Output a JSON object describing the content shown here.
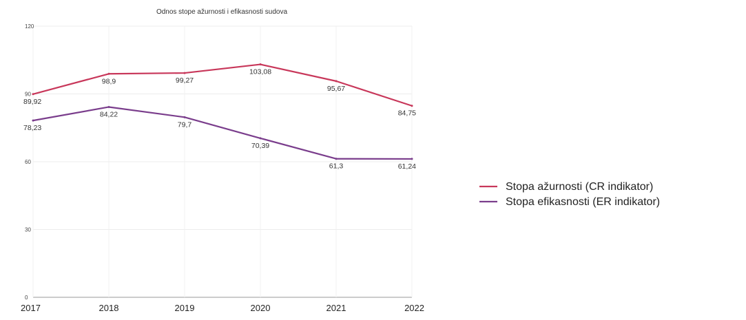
{
  "chart_data": {
    "type": "line",
    "title": "Odnos stope ažurnosti i efikasnosti sudova",
    "xlabel": "",
    "ylabel": "",
    "categories": [
      "2017",
      "2018",
      "2019",
      "2020",
      "2021",
      "2022"
    ],
    "ylim": [
      0,
      120
    ],
    "yticks": [
      "0",
      "30",
      "60",
      "90",
      "120"
    ],
    "grid": true,
    "legend_position": "right",
    "series": [
      {
        "name": "Stopa ažurnosti (CR indikator)",
        "color": "#c8375a",
        "values": [
          89.92,
          98.9,
          99.27,
          103.08,
          95.67,
          84.75
        ],
        "labels": [
          "89,92",
          "98,9",
          "99,27",
          "103,08",
          "95,67",
          "84,75"
        ]
      },
      {
        "name": "Stopa efikasnosti (ER indikator)",
        "color": "#7a3d8c",
        "values": [
          78.23,
          84.22,
          79.7,
          70.39,
          61.3,
          61.24
        ],
        "labels": [
          "78,23",
          "84,22",
          "79,7",
          "70,39",
          "61,3",
          "61,24"
        ]
      }
    ]
  }
}
